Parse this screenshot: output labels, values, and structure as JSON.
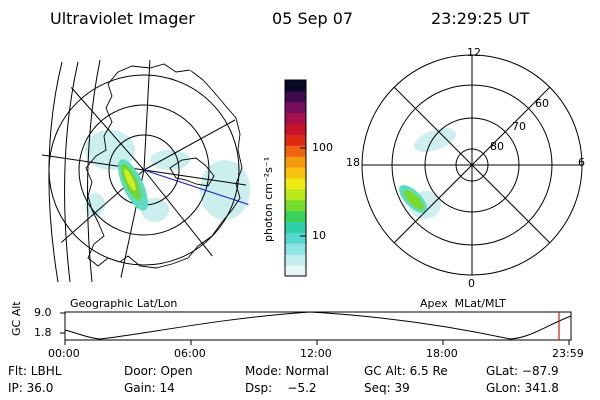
{
  "header": {
    "instrument": "Ultraviolet Imager",
    "date": "05 Sep 07",
    "time": "23:29:25 UT"
  },
  "colorbar": {
    "unit_label": "photon cm⁻²s⁻¹",
    "ticks": [
      {
        "label": "100",
        "value": 100
      },
      {
        "label": "10",
        "value": 10
      }
    ],
    "colors": [
      "#e6f6f6",
      "#c2eef0",
      "#8fe4e4",
      "#56d8cf",
      "#2fcfa8",
      "#3ad25a",
      "#74dc2a",
      "#b7e81c",
      "#ecea12",
      "#f7c212",
      "#f59a0e",
      "#ee6410",
      "#dd2a14",
      "#c8122a",
      "#a8104a",
      "#7a0e5e",
      "#3e0c4e",
      "#0a0828"
    ]
  },
  "left_panel": {
    "caption": "Geographic Lat/Lon"
  },
  "right_panel": {
    "caption": "Apex  MLat/MLT",
    "mlt_labels": {
      "top": "12",
      "bottom": "0",
      "left": "18",
      "right": "6"
    },
    "lat_labels": [
      "60",
      "70",
      "80"
    ]
  },
  "timeline": {
    "axis_label": "GC Alt",
    "y_ticks": [
      "9.0",
      "1.8"
    ],
    "x_ticks": [
      "00:00",
      "06:00",
      "12:00",
      "18:00",
      "23:59"
    ],
    "current_marker_color": "#dd1111"
  },
  "info": {
    "row1": [
      "Flt: LBHL",
      "Door: Open",
      "Mode: Normal",
      "GC Alt: 6.5 Re",
      "GLat: −87.9"
    ],
    "row2": [
      "IP: 36.0",
      "Gain: 14",
      "Dsp:    −5.2",
      "Seq: 39",
      "GLon: 341.8"
    ]
  }
}
